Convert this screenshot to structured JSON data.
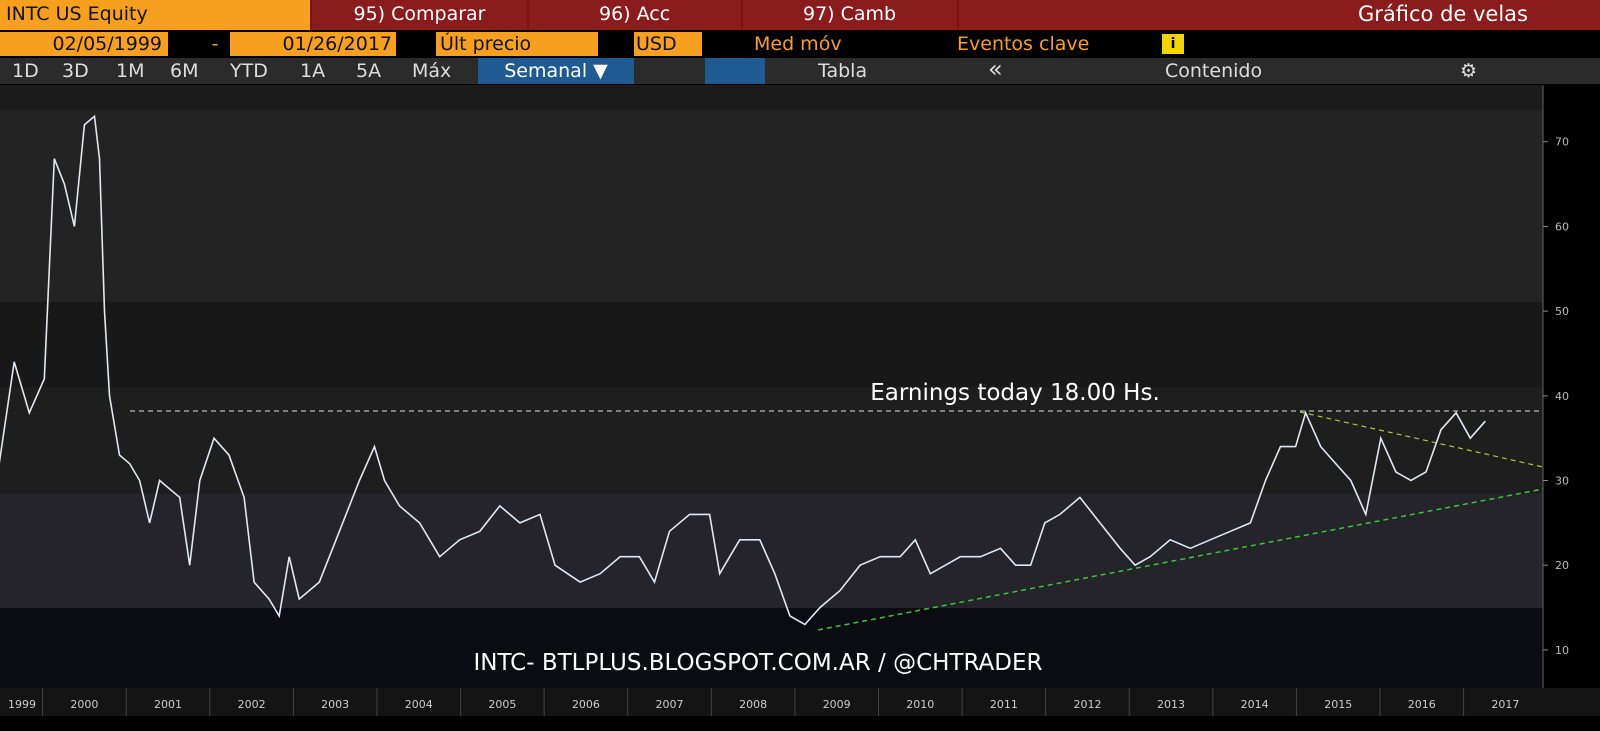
{
  "toolbar": {
    "security": "INTC US Equity",
    "buttons": [
      "95) Comparar",
      "96) Acc",
      "97) Camb"
    ],
    "view_title": "Gráfico de velas",
    "start_date": "02/05/1999",
    "date_separator": "-",
    "end_date": "01/26/2017",
    "price_field": "Últ precio",
    "currency": "USD",
    "moving_average": "Med móv",
    "key_events": "Eventos clave",
    "ranges": [
      "1D",
      "3D",
      "1M",
      "6M",
      "YTD",
      "1A",
      "5A",
      "Máx"
    ],
    "frequency": "Semanal ▼",
    "table": "Tabla",
    "collapse": "«",
    "content": "Contenido"
  },
  "chart_data": {
    "type": "line",
    "annotation": "Earnings today 18.00 Hs.",
    "watermark": "INTC- BTLPLUS.BLOGSPOT.COM.AR / @CHTRADER",
    "x": [
      1999.48,
      1999.66,
      1999.84,
      2000.02,
      2000.08,
      2000.14,
      2000.26,
      2000.38,
      2000.5,
      2000.62,
      2000.68,
      2000.74,
      2000.8,
      2000.92,
      2001.04,
      2001.16,
      2001.28,
      2001.4,
      2001.52,
      2001.64,
      2001.76,
      2001.88,
      2002.05,
      2002.23,
      2002.41,
      2002.53,
      2002.71,
      2002.83,
      2002.95,
      2003.07,
      2003.31,
      2003.55,
      2003.79,
      2003.97,
      2004.09,
      2004.27,
      2004.51,
      2004.75,
      2004.99,
      2005.23,
      2005.47,
      2005.71,
      2005.95,
      2006.13,
      2006.43,
      2006.67,
      2006.91,
      2007.14,
      2007.32,
      2007.5,
      2007.74,
      2007.98,
      2008.1,
      2008.34,
      2008.58,
      2008.76,
      2008.94,
      2009.12,
      2009.3,
      2009.54,
      2009.78,
      2010.02,
      2010.26,
      2010.44,
      2010.62,
      2010.8,
      2010.98,
      2011.22,
      2011.46,
      2011.64,
      2011.82,
      2011.99,
      2012.17,
      2012.41,
      2012.65,
      2012.89,
      2013.07,
      2013.25,
      2013.49,
      2013.73,
      2013.97,
      2014.21,
      2014.45,
      2014.63,
      2014.81,
      2014.99,
      2015.11,
      2015.29,
      2015.47,
      2015.65,
      2015.83,
      2016.01,
      2016.19,
      2016.37,
      2016.55,
      2016.73,
      2016.91,
      2017.08,
      2017.26
    ],
    "series": [
      {
        "color": "#dfe8f5",
        "values": [
          32,
          44,
          38,
          42,
          55,
          68,
          65,
          60,
          72,
          73,
          68,
          50,
          40,
          33,
          32,
          30,
          25,
          30,
          29,
          28,
          20,
          30,
          35,
          33,
          28,
          18,
          16,
          14,
          21,
          16,
          18,
          24,
          30,
          34,
          30,
          27,
          25,
          21,
          23,
          24,
          27,
          25,
          26,
          20,
          18,
          19,
          21,
          21,
          18,
          24,
          26,
          26,
          19,
          23,
          23,
          19,
          14,
          13,
          15,
          17,
          20,
          21,
          21,
          23,
          19,
          20,
          21,
          21,
          22,
          20,
          20,
          25,
          26,
          28,
          25,
          22,
          20,
          21,
          23,
          22,
          23,
          24,
          25,
          30,
          34,
          34,
          38,
          34,
          32,
          30,
          26,
          35,
          31,
          30,
          31,
          36,
          38,
          35,
          37
        ]
      }
    ],
    "xlim": [
      1999.49,
      2017.95
    ],
    "ylim": [
      5.5,
      76.7
    ],
    "xticks": [
      1999,
      2000,
      2001,
      2002,
      2003,
      2004,
      2005,
      2006,
      2007,
      2008,
      2009,
      2010,
      2011,
      2012,
      2013,
      2014,
      2015,
      2016,
      2017
    ],
    "yticks": [
      10,
      20,
      30,
      40,
      50,
      60,
      70
    ]
  }
}
